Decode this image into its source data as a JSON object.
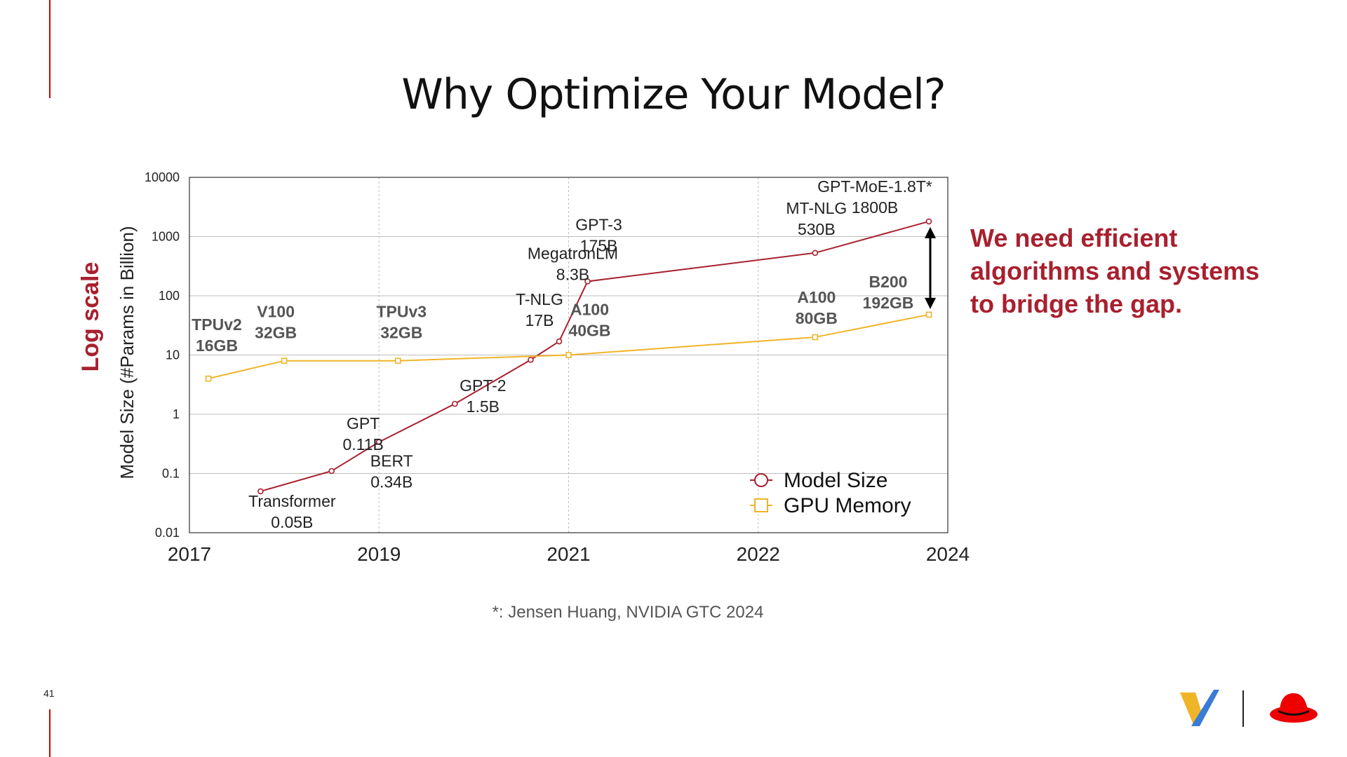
{
  "slide": {
    "title": "Why Optimize Your Model?",
    "page_number": "41",
    "callout_lines": [
      "We need efficient",
      "algorithms and systems",
      "to bridge the gap."
    ],
    "footnote": "*: Jensen Huang, NVIDIA GTC 2024"
  },
  "chart_data": {
    "type": "line",
    "title": "",
    "ylabel": "Model Size (#Params in Billion)",
    "ylabel_emphasis": "Log scale",
    "y_scale": "log",
    "ylim": [
      0.01,
      10000
    ],
    "y_ticks": [
      0.01,
      0.1,
      1,
      10,
      100,
      1000,
      10000
    ],
    "y_tick_labels": [
      "0.01",
      "0.1",
      "1",
      "10",
      "100",
      "1000",
      "10000"
    ],
    "xlim": [
      2017,
      2024
    ],
    "x_tick_labels": [
      "2017",
      "2019",
      "2021",
      "2022",
      "2024"
    ],
    "grid": true,
    "legend_position": "bottom-right",
    "series": [
      {
        "name": "Model Size",
        "color": "#a8202e",
        "marker": "circle",
        "points": [
          {
            "x": 2017.75,
            "y": 0.05,
            "label": [
              "Transformer",
              "0.05B"
            ]
          },
          {
            "x": 2018.5,
            "y": 0.11,
            "label": [
              "GPT",
              "0.11B"
            ]
          },
          {
            "x": 2019.0,
            "y": 0.34,
            "label": [
              "BERT",
              "0.34B"
            ]
          },
          {
            "x": 2019.8,
            "y": 1.5,
            "label": [
              "GPT-2",
              "1.5B"
            ]
          },
          {
            "x": 2020.6,
            "y": 8.3,
            "label": [
              "MegatronLM",
              "8.3B"
            ]
          },
          {
            "x": 2020.9,
            "y": 17,
            "label": [
              "T-NLG",
              "17B"
            ]
          },
          {
            "x": 2021.1,
            "y": 175,
            "label": [
              "GPT-3",
              "175B"
            ]
          },
          {
            "x": 2022.6,
            "y": 530,
            "label": [
              "MT-NLG",
              "530B"
            ]
          },
          {
            "x": 2023.8,
            "y": 1800,
            "label": [
              "GPT-MoE-1.8T*",
              "1800B"
            ]
          }
        ]
      },
      {
        "name": "GPU Memory",
        "color": "#f0b428",
        "marker": "square",
        "points": [
          {
            "x": 2017.2,
            "y": 4,
            "label": [
              "TPUv2",
              "16GB"
            ]
          },
          {
            "x": 2018.0,
            "y": 8,
            "label": [
              "V100",
              "32GB"
            ]
          },
          {
            "x": 2019.2,
            "y": 8,
            "label": [
              "TPUv3",
              "32GB"
            ]
          },
          {
            "x": 2021.0,
            "y": 10,
            "label": [
              "A100",
              "40GB"
            ]
          },
          {
            "x": 2022.6,
            "y": 20,
            "label": [
              "A100",
              "80GB"
            ]
          },
          {
            "x": 2023.8,
            "y": 48,
            "label": [
              "B200",
              "192GB"
            ]
          }
        ]
      }
    ]
  }
}
